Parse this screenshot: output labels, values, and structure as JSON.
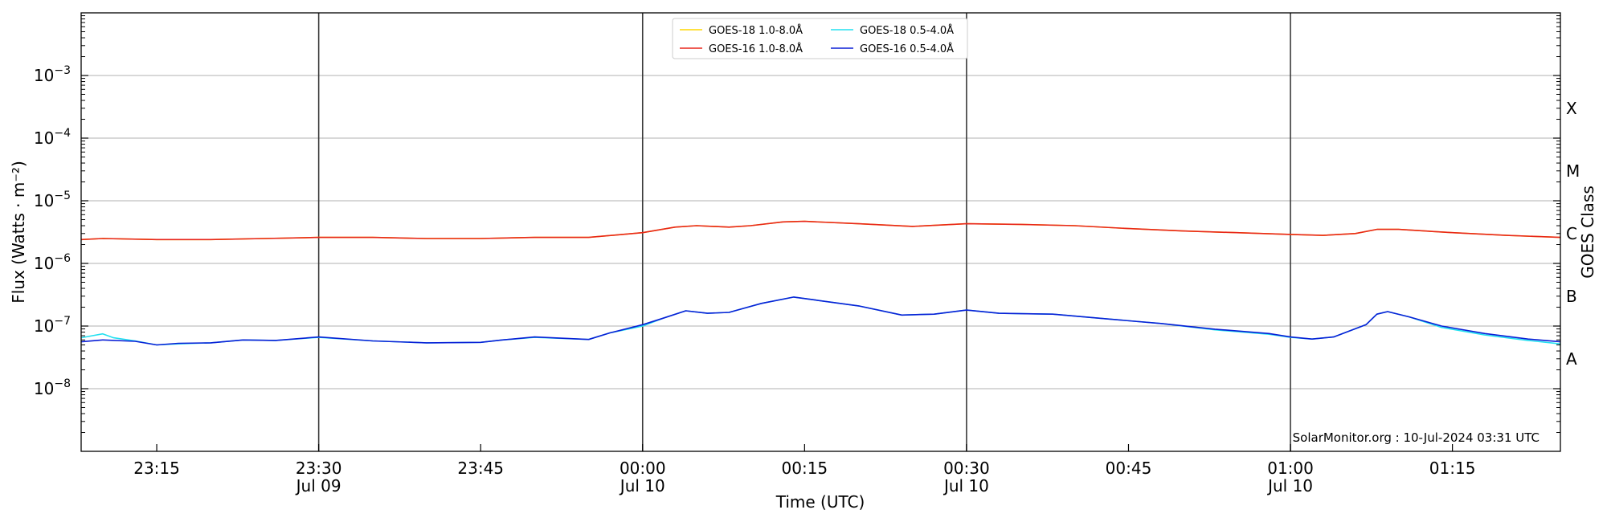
{
  "chart_data": {
    "type": "line",
    "xlabel": "Time (UTC)",
    "ylabel": "Flux (Watts · m⁻²)",
    "y2label": "GOES Class",
    "yscale": "log",
    "ylim": [
      1e-09,
      0.01
    ],
    "xlim": [
      "2024-07-09T23:08",
      "2024-07-10T01:25"
    ],
    "grid": "horizontal at decades",
    "legend_placement": "top-center",
    "credit": "SolarMonitor.org : 10-Jul-2024 03:31 UTC",
    "yticks": [
      {
        "v": 1e-08,
        "base": "10",
        "exp": "−8"
      },
      {
        "v": 1e-07,
        "base": "10",
        "exp": "−7"
      },
      {
        "v": 1e-06,
        "base": "10",
        "exp": "−6"
      },
      {
        "v": 1e-05,
        "base": "10",
        "exp": "−5"
      },
      {
        "v": 0.0001,
        "base": "10",
        "exp": "−4"
      },
      {
        "v": 0.001,
        "base": "10",
        "exp": "−3"
      }
    ],
    "xticks": [
      {
        "t": "2024-07-09T23:15",
        "label": "23:15",
        "sub": ""
      },
      {
        "t": "2024-07-09T23:30",
        "label": "23:30",
        "sub": "Jul 09"
      },
      {
        "t": "2024-07-09T23:45",
        "label": "23:45",
        "sub": ""
      },
      {
        "t": "2024-07-10T00:00",
        "label": "00:00",
        "sub": "Jul 10"
      },
      {
        "t": "2024-07-10T00:15",
        "label": "00:15",
        "sub": ""
      },
      {
        "t": "2024-07-10T00:30",
        "label": "00:30",
        "sub": "Jul 10"
      },
      {
        "t": "2024-07-10T00:45",
        "label": "00:45",
        "sub": ""
      },
      {
        "t": "2024-07-10T01:00",
        "label": "01:00",
        "sub": "Jul 10"
      },
      {
        "t": "2024-07-10T01:15",
        "label": "01:15",
        "sub": ""
      }
    ],
    "vlines": [
      "2024-07-09T23:30",
      "2024-07-10T00:00",
      "2024-07-10T00:30",
      "2024-07-10T01:00"
    ],
    "classes": [
      {
        "label": "A",
        "v": 3e-08
      },
      {
        "label": "B",
        "v": 3e-07
      },
      {
        "label": "C",
        "v": 3e-06
      },
      {
        "label": "M",
        "v": 3e-05
      },
      {
        "label": "X",
        "v": 0.0003
      }
    ],
    "series": [
      {
        "name": "GOES-18 1.0-8.0Å",
        "color": "#ffd700",
        "points": [
          [
            "2024-07-09T23:08",
            2.4e-06
          ],
          [
            "2024-07-09T23:10",
            2.5e-06
          ],
          [
            "2024-07-09T23:15",
            2.4e-06
          ],
          [
            "2024-07-09T23:20",
            2.4e-06
          ],
          [
            "2024-07-09T23:25",
            2.5e-06
          ],
          [
            "2024-07-09T23:30",
            2.6e-06
          ],
          [
            "2024-07-09T23:35",
            2.6e-06
          ],
          [
            "2024-07-09T23:40",
            2.5e-06
          ],
          [
            "2024-07-09T23:45",
            2.5e-06
          ],
          [
            "2024-07-09T23:50",
            2.6e-06
          ],
          [
            "2024-07-09T23:55",
            2.6e-06
          ],
          [
            "2024-07-10T00:00",
            3.1e-06
          ],
          [
            "2024-07-10T00:03",
            3.8e-06
          ],
          [
            "2024-07-10T00:05",
            4e-06
          ],
          [
            "2024-07-10T00:08",
            3.8e-06
          ],
          [
            "2024-07-10T00:10",
            4e-06
          ],
          [
            "2024-07-10T00:13",
            4.6e-06
          ],
          [
            "2024-07-10T00:15",
            4.7e-06
          ],
          [
            "2024-07-10T00:20",
            4.3e-06
          ],
          [
            "2024-07-10T00:25",
            3.9e-06
          ],
          [
            "2024-07-10T00:30",
            4.3e-06
          ],
          [
            "2024-07-10T00:35",
            4.2e-06
          ],
          [
            "2024-07-10T00:40",
            4e-06
          ],
          [
            "2024-07-10T00:45",
            3.6e-06
          ],
          [
            "2024-07-10T00:50",
            3.3e-06
          ],
          [
            "2024-07-10T00:55",
            3.1e-06
          ],
          [
            "2024-07-10T01:00",
            2.9e-06
          ],
          [
            "2024-07-10T01:03",
            2.8e-06
          ],
          [
            "2024-07-10T01:06",
            3e-06
          ],
          [
            "2024-07-10T01:08",
            3.5e-06
          ],
          [
            "2024-07-10T01:10",
            3.5e-06
          ],
          [
            "2024-07-10T01:15",
            3.1e-06
          ],
          [
            "2024-07-10T01:20",
            2.8e-06
          ],
          [
            "2024-07-10T01:25",
            2.6e-06
          ]
        ]
      },
      {
        "name": "GOES-16 1.0-8.0Å",
        "color": "#e8261b",
        "points": [
          [
            "2024-07-09T23:08",
            2.4e-06
          ],
          [
            "2024-07-09T23:10",
            2.5e-06
          ],
          [
            "2024-07-09T23:15",
            2.4e-06
          ],
          [
            "2024-07-09T23:20",
            2.4e-06
          ],
          [
            "2024-07-09T23:25",
            2.5e-06
          ],
          [
            "2024-07-09T23:30",
            2.6e-06
          ],
          [
            "2024-07-09T23:35",
            2.6e-06
          ],
          [
            "2024-07-09T23:40",
            2.5e-06
          ],
          [
            "2024-07-09T23:45",
            2.5e-06
          ],
          [
            "2024-07-09T23:50",
            2.6e-06
          ],
          [
            "2024-07-09T23:55",
            2.6e-06
          ],
          [
            "2024-07-10T00:00",
            3.1e-06
          ],
          [
            "2024-07-10T00:03",
            3.8e-06
          ],
          [
            "2024-07-10T00:05",
            4e-06
          ],
          [
            "2024-07-10T00:08",
            3.8e-06
          ],
          [
            "2024-07-10T00:10",
            4e-06
          ],
          [
            "2024-07-10T00:13",
            4.6e-06
          ],
          [
            "2024-07-10T00:15",
            4.7e-06
          ],
          [
            "2024-07-10T00:20",
            4.3e-06
          ],
          [
            "2024-07-10T00:25",
            3.9e-06
          ],
          [
            "2024-07-10T00:30",
            4.3e-06
          ],
          [
            "2024-07-10T00:35",
            4.2e-06
          ],
          [
            "2024-07-10T00:40",
            4e-06
          ],
          [
            "2024-07-10T00:45",
            3.6e-06
          ],
          [
            "2024-07-10T00:50",
            3.3e-06
          ],
          [
            "2024-07-10T00:55",
            3.1e-06
          ],
          [
            "2024-07-10T01:00",
            2.9e-06
          ],
          [
            "2024-07-10T01:03",
            2.8e-06
          ],
          [
            "2024-07-10T01:06",
            3e-06
          ],
          [
            "2024-07-10T01:08",
            3.5e-06
          ],
          [
            "2024-07-10T01:10",
            3.5e-06
          ],
          [
            "2024-07-10T01:15",
            3.1e-06
          ],
          [
            "2024-07-10T01:20",
            2.8e-06
          ],
          [
            "2024-07-10T01:25",
            2.6e-06
          ]
        ]
      },
      {
        "name": "GOES-18 0.5-4.0Å",
        "color": "#22e0f0",
        "points": [
          [
            "2024-07-09T23:08",
            6.5e-08
          ],
          [
            "2024-07-09T23:09",
            7e-08
          ],
          [
            "2024-07-09T23:10",
            7.5e-08
          ],
          [
            "2024-07-09T23:11",
            6.5e-08
          ],
          [
            "2024-07-09T23:13",
            5.8e-08
          ],
          [
            "2024-07-09T23:15",
            5e-08
          ],
          [
            "2024-07-09T23:17",
            5.2e-08
          ],
          [
            "2024-07-09T23:20",
            5.4e-08
          ],
          [
            "2024-07-09T23:23",
            6e-08
          ],
          [
            "2024-07-09T23:26",
            5.9e-08
          ],
          [
            "2024-07-09T23:30",
            6.6e-08
          ],
          [
            "2024-07-09T23:35",
            5.8e-08
          ],
          [
            "2024-07-09T23:40",
            5.4e-08
          ],
          [
            "2024-07-09T23:45",
            5.5e-08
          ],
          [
            "2024-07-09T23:47",
            6e-08
          ],
          [
            "2024-07-09T23:50",
            6.6e-08
          ],
          [
            "2024-07-09T23:55",
            6.1e-08
          ],
          [
            "2024-07-09T23:57",
            7.8e-08
          ],
          [
            "2024-07-10T00:00",
            1e-07
          ],
          [
            "2024-07-10T00:02",
            1.35e-07
          ],
          [
            "2024-07-10T00:04",
            1.75e-07
          ],
          [
            "2024-07-10T00:06",
            1.6e-07
          ],
          [
            "2024-07-10T00:08",
            1.65e-07
          ],
          [
            "2024-07-10T00:11",
            2.3e-07
          ],
          [
            "2024-07-10T00:14",
            2.9e-07
          ],
          [
            "2024-07-10T00:16",
            2.6e-07
          ],
          [
            "2024-07-10T00:20",
            2.1e-07
          ],
          [
            "2024-07-10T00:24",
            1.5e-07
          ],
          [
            "2024-07-10T00:27",
            1.55e-07
          ],
          [
            "2024-07-10T00:30",
            1.8e-07
          ],
          [
            "2024-07-10T00:33",
            1.6e-07
          ],
          [
            "2024-07-10T00:38",
            1.55e-07
          ],
          [
            "2024-07-10T00:43",
            1.3e-07
          ],
          [
            "2024-07-10T00:48",
            1.1e-07
          ],
          [
            "2024-07-10T00:53",
            8.7e-08
          ],
          [
            "2024-07-10T00:58",
            7.4e-08
          ],
          [
            "2024-07-10T01:00",
            6.6e-08
          ],
          [
            "2024-07-10T01:02",
            6.2e-08
          ],
          [
            "2024-07-10T01:04",
            6.7e-08
          ],
          [
            "2024-07-10T01:07",
            1.05e-07
          ],
          [
            "2024-07-10T01:08",
            1.55e-07
          ],
          [
            "2024-07-10T01:09",
            1.7e-07
          ],
          [
            "2024-07-10T01:11",
            1.4e-07
          ],
          [
            "2024-07-10T01:14",
            9.5e-08
          ],
          [
            "2024-07-10T01:18",
            7.2e-08
          ],
          [
            "2024-07-10T01:22",
            5.9e-08
          ],
          [
            "2024-07-10T01:25",
            5.2e-08
          ]
        ]
      },
      {
        "name": "GOES-16 0.5-4.0Å",
        "color": "#0a1fd6",
        "points": [
          [
            "2024-07-09T23:08",
            5.6e-08
          ],
          [
            "2024-07-09T23:10",
            6e-08
          ],
          [
            "2024-07-09T23:13",
            5.7e-08
          ],
          [
            "2024-07-09T23:15",
            5e-08
          ],
          [
            "2024-07-09T23:17",
            5.3e-08
          ],
          [
            "2024-07-09T23:20",
            5.4e-08
          ],
          [
            "2024-07-09T23:23",
            6e-08
          ],
          [
            "2024-07-09T23:26",
            5.9e-08
          ],
          [
            "2024-07-09T23:30",
            6.7e-08
          ],
          [
            "2024-07-09T23:35",
            5.8e-08
          ],
          [
            "2024-07-09T23:40",
            5.4e-08
          ],
          [
            "2024-07-09T23:45",
            5.5e-08
          ],
          [
            "2024-07-09T23:47",
            6e-08
          ],
          [
            "2024-07-09T23:50",
            6.7e-08
          ],
          [
            "2024-07-09T23:55",
            6.1e-08
          ],
          [
            "2024-07-09T23:57",
            7.8e-08
          ],
          [
            "2024-07-10T00:00",
            1.05e-07
          ],
          [
            "2024-07-10T00:02",
            1.35e-07
          ],
          [
            "2024-07-10T00:04",
            1.75e-07
          ],
          [
            "2024-07-10T00:06",
            1.6e-07
          ],
          [
            "2024-07-10T00:08",
            1.65e-07
          ],
          [
            "2024-07-10T00:11",
            2.3e-07
          ],
          [
            "2024-07-10T00:14",
            2.9e-07
          ],
          [
            "2024-07-10T00:16",
            2.6e-07
          ],
          [
            "2024-07-10T00:20",
            2.1e-07
          ],
          [
            "2024-07-10T00:24",
            1.5e-07
          ],
          [
            "2024-07-10T00:27",
            1.55e-07
          ],
          [
            "2024-07-10T00:30",
            1.8e-07
          ],
          [
            "2024-07-10T00:33",
            1.6e-07
          ],
          [
            "2024-07-10T00:38",
            1.55e-07
          ],
          [
            "2024-07-10T00:43",
            1.3e-07
          ],
          [
            "2024-07-10T00:48",
            1.1e-07
          ],
          [
            "2024-07-10T00:53",
            8.9e-08
          ],
          [
            "2024-07-10T00:58",
            7.6e-08
          ],
          [
            "2024-07-10T01:00",
            6.7e-08
          ],
          [
            "2024-07-10T01:02",
            6.2e-08
          ],
          [
            "2024-07-10T01:04",
            6.7e-08
          ],
          [
            "2024-07-10T01:07",
            1.05e-07
          ],
          [
            "2024-07-10T01:08",
            1.55e-07
          ],
          [
            "2024-07-10T01:09",
            1.7e-07
          ],
          [
            "2024-07-10T01:11",
            1.4e-07
          ],
          [
            "2024-07-10T01:14",
            1e-07
          ],
          [
            "2024-07-10T01:18",
            7.6e-08
          ],
          [
            "2024-07-10T01:22",
            6.2e-08
          ],
          [
            "2024-07-10T01:25",
            5.6e-08
          ]
        ]
      }
    ]
  }
}
